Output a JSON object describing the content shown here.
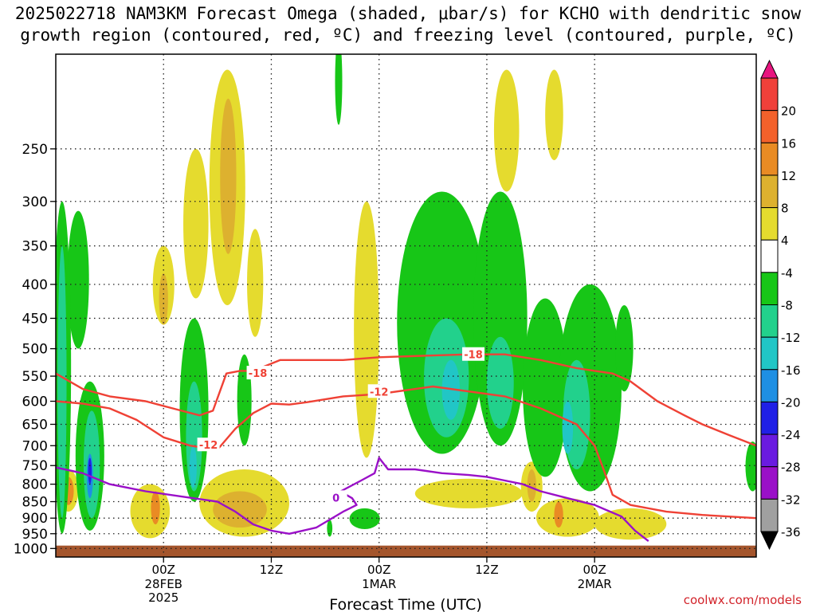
{
  "title_line1": "2025022718 NAM3KM Forecast Omega (shaded, μbar/s) for KCHO with dendritic snow",
  "title_line2": "growth region (contoured, red, ºC) and freezing level (contoured, purple, ºC)",
  "credit": "coolwx.com/models",
  "chart_data": {
    "type": "heatmap",
    "title": "2025022718 NAM3KM Forecast Omega (shaded, μbar/s) for KCHO with dendritic snow growth region (contoured, red, ºC) and freezing level (contoured, purple, ºC)",
    "xlabel": "Forecast Time (UTC)",
    "ylabel": "",
    "x_unit": "hours since 2025-02-27 18Z",
    "xlim": [
      -6,
      72
    ],
    "x_ticks": [
      {
        "label": "00Z",
        "sub": [
          "28FEB",
          "2025"
        ],
        "x": 6
      },
      {
        "label": "12Z",
        "sub": [],
        "x": 18
      },
      {
        "label": "00Z",
        "sub": [
          "1MAR"
        ],
        "x": 30
      },
      {
        "label": "12Z",
        "sub": [],
        "x": 42
      },
      {
        "label": "00Z",
        "sub": [
          "2MAR"
        ],
        "x": 54
      }
    ],
    "y_scale": "log-pressure, inverted",
    "ylim": [
      1030,
      180
    ],
    "y_ticks": [
      250,
      300,
      350,
      400,
      450,
      500,
      550,
      600,
      650,
      700,
      750,
      800,
      850,
      900,
      950,
      1000
    ],
    "grid": true,
    "ground_top_hpa": 990,
    "colorbar": {
      "labels": [
        "20",
        "16",
        "12",
        "8",
        "4",
        "-4",
        "-8",
        "-12",
        "-16",
        "-20",
        "-24",
        "-28",
        "-32",
        "-36"
      ],
      "bins": [
        {
          "color": "#e8157f"
        },
        {
          "color": "#f0403a"
        },
        {
          "color": "#f3612b"
        },
        {
          "color": "#e98b24"
        },
        {
          "color": "#ddb12f"
        },
        {
          "color": "#e5db2e"
        },
        {
          "color": "#ffffff"
        },
        {
          "color": "#17c617"
        },
        {
          "color": "#22d18c"
        },
        {
          "color": "#21c6c6"
        },
        {
          "color": "#1e8fe3"
        },
        {
          "color": "#2020e6"
        },
        {
          "color": "#6a1be0"
        },
        {
          "color": "#9a10c8"
        },
        {
          "color": "#a0a0a0"
        },
        {
          "color": "#000000"
        }
      ]
    },
    "omega_regions": [
      {
        "level": 4,
        "color": "#e5db2e",
        "center": [
          13.1,
          330
        ],
        "half_width": 2.0,
        "p_top": 190,
        "p_bottom": 430
      },
      {
        "level": 8,
        "color": "#ddb12f",
        "center": [
          13.2,
          255
        ],
        "half_width": 0.9,
        "p_top": 210,
        "p_bottom": 360
      },
      {
        "level": 4,
        "color": "#e5db2e",
        "center": [
          6.0,
          400
        ],
        "half_width": 1.2,
        "p_top": 350,
        "p_bottom": 460
      },
      {
        "level": 8,
        "color": "#ddb12f",
        "center": [
          6.0,
          420
        ],
        "half_width": 0.5,
        "p_top": 385,
        "p_bottom": 460
      },
      {
        "level": 4,
        "color": "#e5db2e",
        "center": [
          9.6,
          300
        ],
        "half_width": 1.4,
        "p_top": 250,
        "p_bottom": 420
      },
      {
        "level": 4,
        "color": "#e5db2e",
        "center": [
          16.2,
          360
        ],
        "half_width": 0.9,
        "p_top": 330,
        "p_bottom": 480
      },
      {
        "level": 4,
        "color": "#e5db2e",
        "center": [
          28.6,
          560
        ],
        "half_width": 1.4,
        "p_top": 300,
        "p_bottom": 730
      },
      {
        "level": 4,
        "color": "#e5db2e",
        "center": [
          15.0,
          880
        ],
        "half_width": 5.0,
        "p_top": 760,
        "p_bottom": 960
      },
      {
        "level": 8,
        "color": "#ddb12f",
        "center": [
          14.5,
          870
        ],
        "half_width": 3.0,
        "p_top": 820,
        "p_bottom": 930
      },
      {
        "level": 4,
        "color": "#e5db2e",
        "center": [
          4.5,
          885
        ],
        "half_width": 2.2,
        "p_top": 800,
        "p_bottom": 965
      },
      {
        "level": 12,
        "color": "#e98b24",
        "center": [
          5.1,
          870
        ],
        "half_width": 0.5,
        "p_top": 820,
        "p_bottom": 920
      },
      {
        "level": 4,
        "color": "#e5db2e",
        "center": [
          -4.6,
          820
        ],
        "half_width": 1.1,
        "p_top": 760,
        "p_bottom": 880
      },
      {
        "level": 12,
        "color": "#e98b24",
        "center": [
          -4.6,
          815
        ],
        "half_width": 0.6,
        "p_top": 780,
        "p_bottom": 860
      },
      {
        "level": 4,
        "color": "#e5db2e",
        "center": [
          40.0,
          830
        ],
        "half_width": 6.0,
        "p_top": 785,
        "p_bottom": 870
      },
      {
        "level": 4,
        "color": "#e5db2e",
        "center": [
          47.0,
          810
        ],
        "half_width": 1.2,
        "p_top": 740,
        "p_bottom": 880
      },
      {
        "level": 8,
        "color": "#ddb12f",
        "center": [
          47.0,
          805
        ],
        "half_width": 0.5,
        "p_top": 760,
        "p_bottom": 850
      },
      {
        "level": 4,
        "color": "#e5db2e",
        "center": [
          51.0,
          900
        ],
        "half_width": 3.5,
        "p_top": 840,
        "p_bottom": 960
      },
      {
        "level": 12,
        "color": "#e98b24",
        "center": [
          50.0,
          890
        ],
        "half_width": 0.5,
        "p_top": 850,
        "p_bottom": 930
      },
      {
        "level": 4,
        "color": "#e5db2e",
        "center": [
          58.0,
          920
        ],
        "half_width": 4.0,
        "p_top": 870,
        "p_bottom": 970
      },
      {
        "level": 4,
        "color": "#e5db2e",
        "center": [
          44.2,
          230
        ],
        "half_width": 1.4,
        "p_top": 190,
        "p_bottom": 290
      },
      {
        "level": 4,
        "color": "#e5db2e",
        "center": [
          49.5,
          220
        ],
        "half_width": 1.0,
        "p_top": 190,
        "p_bottom": 260
      },
      {
        "level": -4,
        "color": "#17c617",
        "center": [
          -3.5,
          380
        ],
        "half_width": 1.2,
        "p_top": 310,
        "p_bottom": 500
      },
      {
        "level": -4,
        "color": "#17c617",
        "center": [
          -5.3,
          600
        ],
        "half_width": 1.0,
        "p_top": 300,
        "p_bottom": 950
      },
      {
        "level": -8,
        "color": "#22d18c",
        "center": [
          -5.3,
          600
        ],
        "half_width": 0.5,
        "p_top": 350,
        "p_bottom": 900
      },
      {
        "level": -4,
        "color": "#17c617",
        "center": [
          -2.2,
          720
        ],
        "half_width": 1.6,
        "p_top": 560,
        "p_bottom": 940
      },
      {
        "level": -8,
        "color": "#22d18c",
        "center": [
          -2.0,
          720
        ],
        "half_width": 0.9,
        "p_top": 620,
        "p_bottom": 900
      },
      {
        "level": -16,
        "color": "#1e8fe3",
        "center": [
          -2.2,
          780
        ],
        "half_width": 0.35,
        "p_top": 720,
        "p_bottom": 840
      },
      {
        "level": -24,
        "color": "#2020e6",
        "center": [
          -2.2,
          770
        ],
        "half_width": 0.2,
        "p_top": 730,
        "p_bottom": 800
      },
      {
        "level": -4,
        "color": "#17c617",
        "center": [
          9.4,
          620
        ],
        "half_width": 1.6,
        "p_top": 450,
        "p_bottom": 850
      },
      {
        "level": -8,
        "color": "#22d18c",
        "center": [
          9.4,
          680
        ],
        "half_width": 0.9,
        "p_top": 560,
        "p_bottom": 820
      },
      {
        "level": -12,
        "color": "#21c6c6",
        "center": [
          9.3,
          760
        ],
        "half_width": 0.4,
        "p_top": 700,
        "p_bottom": 810
      },
      {
        "level": -4,
        "color": "#17c617",
        "center": [
          15.0,
          560
        ],
        "half_width": 0.8,
        "p_top": 510,
        "p_bottom": 700
      },
      {
        "level": -4,
        "color": "#17c617",
        "center": [
          28.4,
          895
        ],
        "half_width": 1.7,
        "p_top": 870,
        "p_bottom": 935
      },
      {
        "level": -4,
        "color": "#17c617",
        "center": [
          37.0,
          480
        ],
        "half_width": 5.0,
        "p_top": 290,
        "p_bottom": 720
      },
      {
        "level": -8,
        "color": "#22d18c",
        "center": [
          37.5,
          560
        ],
        "half_width": 2.5,
        "p_top": 450,
        "p_bottom": 680
      },
      {
        "level": -12,
        "color": "#21c6c6",
        "center": [
          38.0,
          580
        ],
        "half_width": 1.0,
        "p_top": 520,
        "p_bottom": 640
      },
      {
        "level": -4,
        "color": "#17c617",
        "center": [
          43.5,
          470
        ],
        "half_width": 3.0,
        "p_top": 290,
        "p_bottom": 700
      },
      {
        "level": -8,
        "color": "#22d18c",
        "center": [
          43.5,
          560
        ],
        "half_width": 1.5,
        "p_top": 480,
        "p_bottom": 660
      },
      {
        "level": -4,
        "color": "#17c617",
        "center": [
          48.5,
          520
        ],
        "half_width": 2.5,
        "p_top": 420,
        "p_bottom": 780
      },
      {
        "level": -4,
        "color": "#17c617",
        "center": [
          53.5,
          560
        ],
        "half_width": 3.5,
        "p_top": 400,
        "p_bottom": 820
      },
      {
        "level": -8,
        "color": "#22d18c",
        "center": [
          52.0,
          620
        ],
        "half_width": 1.5,
        "p_top": 520,
        "p_bottom": 760
      },
      {
        "level": -12,
        "color": "#21c6c6",
        "center": [
          51.0,
          660
        ],
        "half_width": 0.6,
        "p_top": 600,
        "p_bottom": 720
      },
      {
        "level": -4,
        "color": "#17c617",
        "center": [
          57.3,
          500
        ],
        "half_width": 1.0,
        "p_top": 430,
        "p_bottom": 580
      },
      {
        "level": -4,
        "color": "#17c617",
        "center": [
          25.5,
          160
        ],
        "half_width": 0.4,
        "p_top": 170,
        "p_bottom": 230
      },
      {
        "level": -4,
        "color": "#17c617",
        "center": [
          24.5,
          940
        ],
        "half_width": 0.3,
        "p_top": 905,
        "p_bottom": 960
      },
      {
        "level": -4,
        "color": "#17c617",
        "center": [
          71.6,
          760
        ],
        "half_width": 0.8,
        "p_top": 690,
        "p_bottom": 820
      }
    ],
    "contours": [
      {
        "name": "-18",
        "kind": "dendritic",
        "color": "#ef4135",
        "label_at": [
          16.5,
          544
        ],
        "label_at2": [
          40.5,
          510
        ],
        "points": [
          [
            -6,
            545
          ],
          [
            -3,
            575
          ],
          [
            0,
            590
          ],
          [
            4,
            600
          ],
          [
            8,
            620
          ],
          [
            10,
            630
          ],
          [
            11.5,
            620
          ],
          [
            13,
            545
          ],
          [
            14.5,
            540
          ],
          [
            16,
            540
          ],
          [
            17.5,
            530
          ],
          [
            19,
            520
          ],
          [
            22,
            520
          ],
          [
            26,
            520
          ],
          [
            30,
            515
          ],
          [
            36,
            512
          ],
          [
            40,
            510
          ],
          [
            44,
            510
          ],
          [
            48,
            520
          ],
          [
            52,
            535
          ],
          [
            56,
            545
          ],
          [
            58,
            560
          ],
          [
            61,
            600
          ],
          [
            64,
            630
          ],
          [
            66,
            650
          ],
          [
            69,
            675
          ],
          [
            72,
            700
          ]
        ]
      },
      {
        "name": "-12",
        "kind": "dendritic",
        "color": "#ef4135",
        "label_at": [
          11,
          698
        ],
        "label_at2": [
          30,
          580
        ],
        "points": [
          [
            -6,
            600
          ],
          [
            -3,
            605
          ],
          [
            0,
            615
          ],
          [
            3,
            640
          ],
          [
            6,
            680
          ],
          [
            9,
            700
          ],
          [
            12,
            710
          ],
          [
            14,
            660
          ],
          [
            16,
            625
          ],
          [
            18,
            605
          ],
          [
            20,
            607
          ],
          [
            22,
            602
          ],
          [
            26,
            590
          ],
          [
            30,
            585
          ],
          [
            36,
            570
          ],
          [
            44,
            590
          ],
          [
            48,
            615
          ],
          [
            52,
            650
          ],
          [
            54,
            700
          ],
          [
            55,
            760
          ],
          [
            56,
            830
          ],
          [
            58,
            860
          ],
          [
            62,
            880
          ],
          [
            66,
            890
          ],
          [
            72,
            900
          ]
        ]
      },
      {
        "name": "0",
        "kind": "freezing",
        "color": "#9a10c8",
        "label_at": [
          25.2,
          838
        ],
        "points": [
          [
            -6,
            755
          ],
          [
            -3,
            770
          ],
          [
            0,
            800
          ],
          [
            2,
            810
          ],
          [
            4,
            820
          ],
          [
            8,
            835
          ],
          [
            12,
            850
          ],
          [
            14,
            880
          ],
          [
            16,
            920
          ],
          [
            18,
            940
          ],
          [
            20,
            950
          ],
          [
            23,
            930
          ],
          [
            26,
            880
          ],
          [
            27.5,
            860
          ],
          [
            27,
            840
          ],
          [
            26,
            825
          ],
          [
            25,
            830
          ],
          [
            28,
            790
          ],
          [
            29.5,
            770
          ],
          [
            30,
            730
          ],
          [
            31,
            760
          ],
          [
            34,
            760
          ],
          [
            37,
            770
          ],
          [
            40,
            775
          ],
          [
            42,
            780
          ],
          [
            44,
            790
          ],
          [
            46,
            800
          ],
          [
            48,
            820
          ],
          [
            51,
            840
          ],
          [
            54,
            860
          ],
          [
            57,
            895
          ],
          [
            58.5,
            940
          ],
          [
            60,
            975
          ]
        ]
      }
    ]
  }
}
